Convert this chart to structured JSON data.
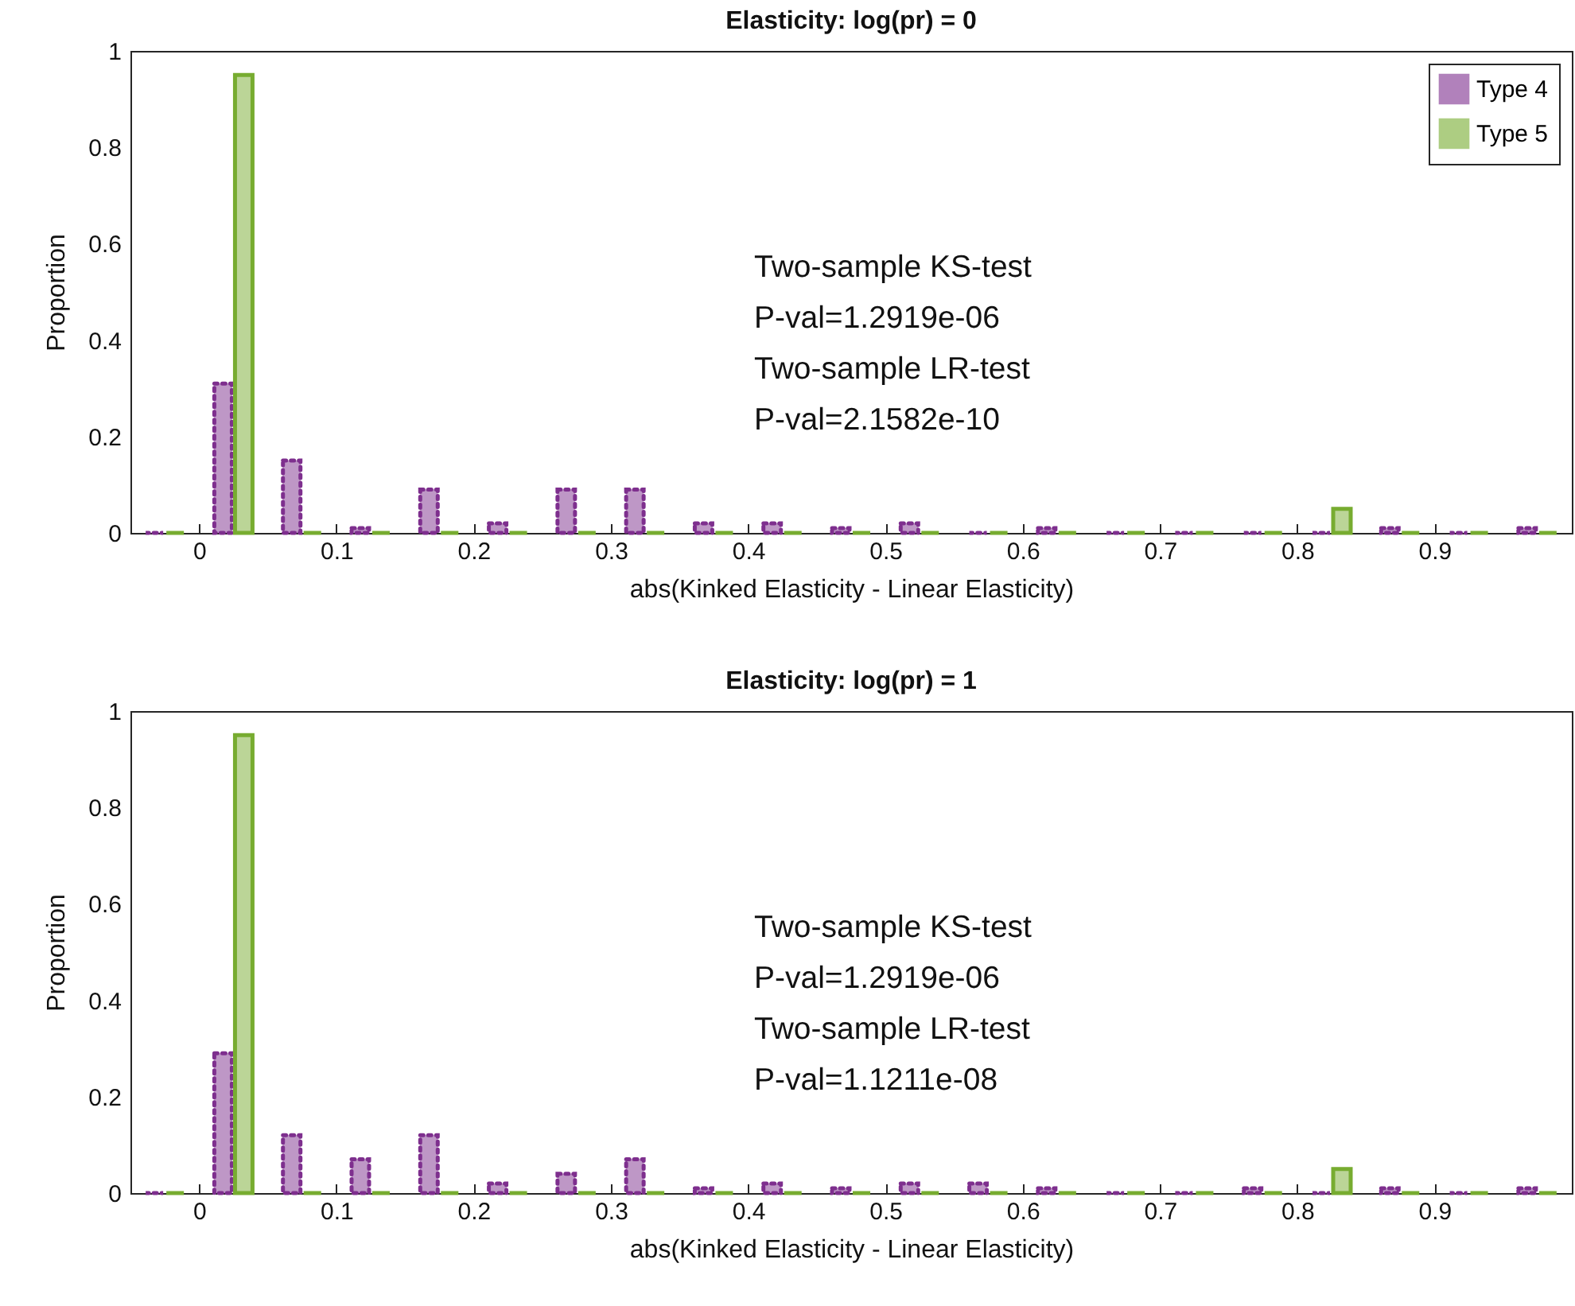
{
  "chart_data": [
    {
      "type": "bar",
      "title": "Elasticity: log(pr) = 0",
      "xlabel": "abs(Kinked Elasticity - Linear Elasticity)",
      "ylabel": "Proportion",
      "x": [
        -0.025,
        0.025,
        0.075,
        0.125,
        0.175,
        0.225,
        0.275,
        0.325,
        0.375,
        0.425,
        0.475,
        0.525,
        0.575,
        0.625,
        0.675,
        0.725,
        0.775,
        0.825,
        0.875,
        0.925,
        0.975
      ],
      "series": [
        {
          "name": "Type 4",
          "color": "#7e2f8e",
          "line_style": "dotted",
          "values": [
            0,
            0.31,
            0.15,
            0.01,
            0.09,
            0.02,
            0.09,
            0.09,
            0.02,
            0.02,
            0.01,
            0.02,
            0,
            0.01,
            0,
            0,
            0,
            0,
            0.01,
            0,
            0.01
          ]
        },
        {
          "name": "Type 5",
          "color": "#77ac30",
          "line_style": "solid",
          "values": [
            0,
            0.95,
            0,
            0,
            0,
            0,
            0,
            0,
            0,
            0,
            0,
            0,
            0,
            0,
            0,
            0,
            0,
            0.05,
            0,
            0,
            0
          ]
        }
      ],
      "xlim": [
        -0.05,
        1.0
      ],
      "xticks": [
        0,
        0.1,
        0.2,
        0.3,
        0.4,
        0.5,
        0.6,
        0.7,
        0.8,
        0.9
      ],
      "ylim": [
        0,
        1
      ],
      "yticks": [
        0,
        0.2,
        0.4,
        0.6,
        0.8,
        1
      ],
      "grid": false,
      "legend": "top right",
      "annotations": [
        "Two-sample KS-test",
        "P-val=1.2919e-06",
        "Two-sample LR-test",
        "P-val=2.1582e-10"
      ]
    },
    {
      "type": "bar",
      "title": "Elasticity: log(pr) = 1",
      "xlabel": "abs(Kinked Elasticity - Linear Elasticity)",
      "ylabel": "Proportion",
      "x": [
        -0.025,
        0.025,
        0.075,
        0.125,
        0.175,
        0.225,
        0.275,
        0.325,
        0.375,
        0.425,
        0.475,
        0.525,
        0.575,
        0.625,
        0.675,
        0.725,
        0.775,
        0.825,
        0.875,
        0.925,
        0.975
      ],
      "series": [
        {
          "color": "#7e2f8e",
          "line_style": "dotted",
          "values": [
            0,
            0.29,
            0.12,
            0.07,
            0.12,
            0.02,
            0.04,
            0.07,
            0.01,
            0.02,
            0.01,
            0.02,
            0.02,
            0.01,
            0,
            0,
            0.01,
            0,
            0.01,
            0,
            0.01
          ]
        },
        {
          "color": "#77ac30",
          "line_style": "solid",
          "values": [
            0,
            0.95,
            0,
            0,
            0,
            0,
            0,
            0,
            0,
            0,
            0,
            0,
            0,
            0,
            0,
            0,
            0,
            0.05,
            0,
            0,
            0
          ]
        }
      ],
      "xlim": [
        -0.05,
        1.0
      ],
      "xticks": [
        0,
        0.1,
        0.2,
        0.3,
        0.4,
        0.5,
        0.6,
        0.7,
        0.8,
        0.9
      ],
      "ylim": [
        0,
        1
      ],
      "yticks": [
        0,
        0.2,
        0.4,
        0.6,
        0.8,
        1
      ],
      "grid": false,
      "legend": false,
      "annotations": [
        "Two-sample KS-test",
        "P-val=1.2919e-06",
        "Two-sample LR-test",
        "P-val=1.1211e-08"
      ]
    }
  ]
}
